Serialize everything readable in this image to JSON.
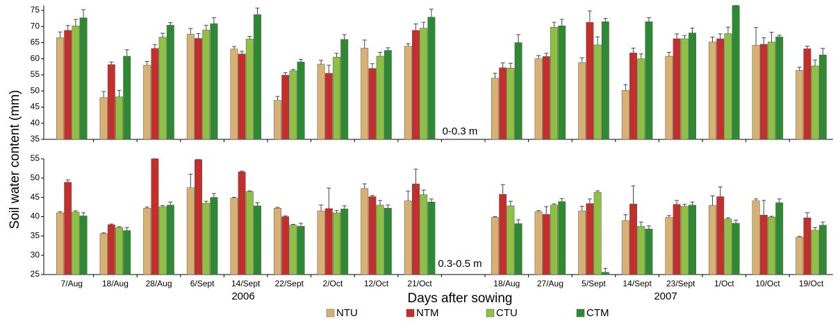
{
  "ylabel": "Soil water content (mm)",
  "xlabel": "Days after sowing",
  "year_labels": [
    "2006",
    "2007"
  ],
  "categories": [
    "7/Aug",
    "18/Aug",
    "28/Aug",
    "6/Sept",
    "14/Sept",
    "22/Sept",
    "2/Oct",
    "12/Oct",
    "21/Oct",
    null,
    "18/Aug",
    "27/Aug",
    "5/Sept",
    "14/Sept",
    "23/Sept",
    "1/Oct",
    "10/Oct",
    "19/Oct"
  ],
  "chart_data": [
    {
      "type": "bar",
      "panel_label": "0-0.3 m",
      "ylim": [
        35,
        76.5
      ],
      "yticks": [
        35,
        40,
        45,
        50,
        55,
        60,
        65,
        70,
        75
      ],
      "series": [
        {
          "color": "#d8b071",
          "values": [
            66.5,
            48,
            58,
            67.6,
            63,
            47.1,
            58.3,
            63.3,
            63.9,
            null,
            54,
            60,
            58.8,
            50.2,
            60.8,
            65.2,
            64.2,
            56.4
          ],
          "errors": [
            1.8,
            1.8,
            1.2,
            1.8,
            0.8,
            1.2,
            1.2,
            2.5,
            0.8,
            null,
            1.5,
            1,
            1.5,
            1.8,
            1.2,
            1.5,
            5.5,
            1
          ]
        },
        {
          "color": "#c3302c",
          "values": [
            68.8,
            58.2,
            63.2,
            66.3,
            61.5,
            54.9,
            55.5,
            57,
            68.8,
            null,
            57.2,
            60.7,
            71.3,
            61.8,
            66.2,
            66.2,
            64.5,
            63.1
          ],
          "errors": [
            1.5,
            0.8,
            1.2,
            1.5,
            0.8,
            0.8,
            2.5,
            1.5,
            2,
            null,
            1.5,
            1,
            3.5,
            1.5,
            1.5,
            1.5,
            2,
            0.8
          ]
        },
        {
          "color": "#8dc043",
          "values": [
            70.2,
            48.2,
            66.7,
            68.9,
            66.1,
            56.3,
            60.5,
            60.8,
            69.5,
            null,
            57.1,
            69.8,
            64.3,
            60,
            66.2,
            67.8,
            65.2,
            57.8
          ],
          "errors": [
            2,
            2,
            1.2,
            1.5,
            0.8,
            0.4,
            1.2,
            1.2,
            1.8,
            null,
            1.5,
            1.5,
            2.5,
            1.5,
            1,
            2,
            3,
            1.8
          ]
        },
        {
          "color": "#2d8a33",
          "values": [
            72.7,
            60.8,
            70.4,
            70.9,
            73.7,
            59,
            66,
            62.6,
            72.9,
            null,
            65,
            70.2,
            71.5,
            71.5,
            68,
            76.5,
            66.8,
            61.2
          ],
          "errors": [
            2.5,
            2,
            0.8,
            1.8,
            2,
            0.8,
            1.5,
            0.8,
            2.5,
            null,
            2.5,
            2,
            1,
            1.2,
            1.5,
            0.5,
            0.5,
            2
          ]
        }
      ]
    },
    {
      "type": "bar",
      "panel_label": "0.3-0.5 m",
      "ylim": [
        25,
        55
      ],
      "yticks": [
        25,
        30,
        35,
        40,
        45,
        50,
        55
      ],
      "series": [
        {
          "name": "NTU",
          "color": "#d8b071",
          "values": [
            41,
            35.6,
            42.2,
            47.5,
            44.8,
            42.2,
            41.5,
            47.3,
            44.1,
            null,
            39.8,
            41.3,
            41.5,
            39,
            39.8,
            42.9,
            44.1,
            34.7
          ],
          "errors": [
            0.3,
            0.2,
            0.3,
            3.5,
            0.2,
            0.2,
            1.5,
            1.2,
            2.5,
            null,
            0.2,
            0.3,
            1.2,
            1.5,
            0.5,
            2.5,
            0.5,
            0.2
          ]
        },
        {
          "name": "NTM",
          "color": "#c3302c",
          "values": [
            48.9,
            37.9,
            55,
            54.8,
            51.6,
            40,
            42.1,
            45.2,
            48.5,
            null,
            45.8,
            40.6,
            43.4,
            43.3,
            43.2,
            45.2,
            40.4,
            39.7
          ],
          "errors": [
            0.6,
            0.2,
            0,
            0,
            0.2,
            0.2,
            5.3,
            0.3,
            3.8,
            null,
            2.5,
            2,
            1.2,
            4.7,
            1,
            2.5,
            3.8,
            1.3
          ]
        },
        {
          "name": "CTU",
          "color": "#8dc043",
          "values": [
            41.2,
            37.2,
            42.6,
            43.5,
            46.5,
            37.8,
            41,
            43,
            45.7,
            null,
            42.8,
            43,
            46.3,
            37.5,
            42.7,
            39.4,
            39.9,
            36.5
          ],
          "errors": [
            0.3,
            0.2,
            0.3,
            0.5,
            0.2,
            0.2,
            0.6,
            1.2,
            1.2,
            null,
            1.2,
            0.3,
            0.4,
            1.1,
            0.5,
            0.3,
            0.2,
            0.7
          ]
        },
        {
          "name": "CTM",
          "color": "#2d8a33",
          "values": [
            40.2,
            36.4,
            43,
            45,
            42.8,
            37.5,
            42,
            42.2,
            43.8,
            null,
            38.2,
            43.9,
            25.6,
            36.8,
            43,
            38.3,
            43.6,
            37.8
          ],
          "errors": [
            0.8,
            0.8,
            0.8,
            1,
            0.8,
            0.8,
            0.8,
            0.8,
            0.8,
            null,
            1,
            0.8,
            1,
            0.8,
            0.8,
            0.8,
            1,
            0.8
          ]
        }
      ]
    }
  ]
}
